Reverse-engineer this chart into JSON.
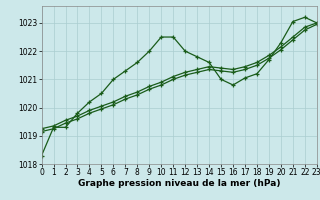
{
  "x": [
    0,
    1,
    2,
    3,
    4,
    5,
    6,
    7,
    8,
    9,
    10,
    11,
    12,
    13,
    14,
    15,
    16,
    17,
    18,
    19,
    20,
    21,
    22,
    23
  ],
  "pressure_main": [
    1018.3,
    1019.3,
    1019.3,
    1019.8,
    1020.2,
    1020.5,
    1021.0,
    1021.3,
    1021.6,
    1022.0,
    1022.5,
    1022.5,
    1022.0,
    1021.8,
    1021.6,
    1021.0,
    1020.8,
    1021.05,
    1021.2,
    1021.7,
    1022.3,
    1023.05,
    1023.2,
    1023.0
  ],
  "pressure_line2": [
    1019.25,
    1019.35,
    1019.55,
    1019.7,
    1019.9,
    1020.05,
    1020.2,
    1020.4,
    1020.55,
    1020.75,
    1020.9,
    1021.1,
    1021.25,
    1021.35,
    1021.45,
    1021.4,
    1021.35,
    1021.45,
    1021.6,
    1021.85,
    1022.15,
    1022.5,
    1022.85,
    1023.0
  ],
  "pressure_line3": [
    1019.15,
    1019.25,
    1019.45,
    1019.6,
    1019.8,
    1019.95,
    1020.1,
    1020.3,
    1020.45,
    1020.65,
    1020.8,
    1021.0,
    1021.15,
    1021.25,
    1021.35,
    1021.3,
    1021.25,
    1021.35,
    1021.5,
    1021.75,
    1022.05,
    1022.4,
    1022.75,
    1022.95
  ],
  "bg_color": "#cce8ea",
  "grid_color": "#aacdd0",
  "line_color": "#1a5c1a",
  "xlabel": "Graphe pression niveau de la mer (hPa)",
  "ylim": [
    1018,
    1023.6
  ],
  "xlim": [
    0,
    23
  ],
  "yticks": [
    1018,
    1019,
    1020,
    1021,
    1022,
    1023
  ],
  "xticks": [
    0,
    1,
    2,
    3,
    4,
    5,
    6,
    7,
    8,
    9,
    10,
    11,
    12,
    13,
    14,
    15,
    16,
    17,
    18,
    19,
    20,
    21,
    22,
    23
  ],
  "markersize": 3.5,
  "linewidth": 0.9,
  "tick_fontsize": 5.5,
  "xlabel_fontsize": 6.5
}
